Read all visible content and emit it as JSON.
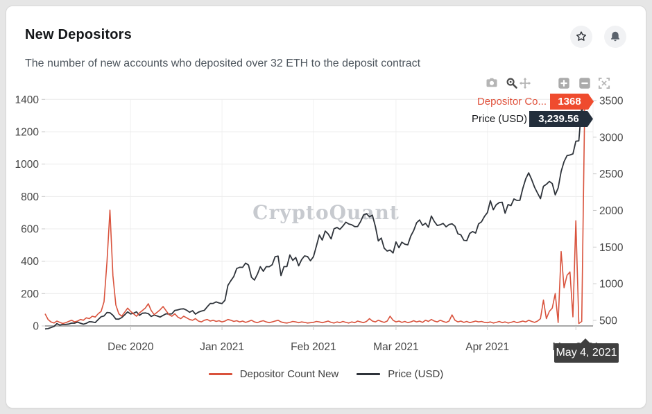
{
  "header": {
    "title": "New Depositors",
    "subtitle": "The number of new accounts who deposited over 32 ETH to the deposit contract"
  },
  "hover": {
    "series1_label": "Depositor Co...",
    "series1_value": "1368",
    "series1_color": "#e0503a",
    "series1_badge_color": "#ef4b2e",
    "series2_label": "Price (USD)",
    "series2_value": "3,239.56",
    "series2_badge_color": "#232e3b",
    "date_label": "May 4, 2021",
    "date_badge_color": "#3f3f3f"
  },
  "watermark": "CryptoQuant",
  "legend": {
    "items": [
      {
        "label": "Depositor Count New",
        "color": "#d9523c"
      },
      {
        "label": "Price (USD)",
        "color": "#2e333a"
      }
    ]
  },
  "chart_data": {
    "type": "line",
    "start_date": "2020-11-02",
    "frequency": "daily",
    "x_ticks": [
      "Dec 2020",
      "Jan 2021",
      "Feb 2021",
      "Mar 2021",
      "Apr 2021",
      "May 2021"
    ],
    "left_axis": {
      "ticks": [
        0,
        200,
        400,
        600,
        800,
        1000,
        1200,
        1400
      ],
      "range": [
        0,
        1400
      ]
    },
    "right_axis": {
      "ticks": [
        500,
        1000,
        1500,
        2000,
        2500,
        3000,
        3500
      ],
      "range": [
        424,
        3516
      ]
    },
    "grid": true,
    "legend_position": "bottom",
    "series": [
      {
        "name": "Depositor Count New",
        "axis": "left",
        "color": "#d9523c",
        "last_point": {
          "date": "May 4, 2021",
          "value": 1368
        },
        "values": [
          75,
          40,
          25,
          18,
          30,
          22,
          15,
          20,
          28,
          35,
          25,
          30,
          40,
          35,
          50,
          45,
          60,
          55,
          75,
          90,
          150,
          400,
          715,
          310,
          130,
          75,
          60,
          85,
          110,
          90,
          75,
          60,
          80,
          95,
          110,
          137,
          95,
          70,
          85,
          100,
          120,
          95,
          70,
          60,
          75,
          55,
          45,
          60,
          50,
          40,
          35,
          45,
          30,
          25,
          35,
          40,
          30,
          35,
          28,
          32,
          25,
          30,
          40,
          35,
          28,
          32,
          25,
          30,
          22,
          28,
          35,
          25,
          20,
          28,
          32,
          25,
          20,
          25,
          30,
          35,
          25,
          20,
          18,
          22,
          28,
          25,
          20,
          25,
          22,
          18,
          20,
          22,
          28,
          25,
          20,
          25,
          30,
          22,
          18,
          25,
          20,
          28,
          22,
          18,
          25,
          20,
          30,
          25,
          20,
          28,
          45,
          30,
          25,
          35,
          28,
          22,
          30,
          60,
          35,
          25,
          30,
          22,
          28,
          20,
          25,
          32,
          25,
          30,
          22,
          35,
          28,
          40,
          30,
          25,
          35,
          28,
          22,
          30,
          68,
          35,
          25,
          30,
          22,
          28,
          20,
          25,
          30,
          25,
          28,
          22,
          20,
          25,
          18,
          22,
          28,
          20,
          25,
          18,
          22,
          28,
          20,
          25,
          30,
          25,
          35,
          28,
          22,
          30,
          45,
          160,
          45,
          90,
          110,
          200,
          21,
          460,
          236,
          313,
          334,
          56,
          650,
          15,
          28,
          1368
        ]
      },
      {
        "name": "Price (USD)",
        "axis": "right",
        "color": "#2e333a",
        "last_point": {
          "date": "May 4, 2021",
          "value": 3239.56
        },
        "values": [
          383,
          387,
          402,
          416,
          455,
          435,
          444,
          445,
          450,
          463,
          462,
          476,
          461,
          448,
          460,
          482,
          479,
          470,
          510,
          550,
          560,
          608,
          604,
          570,
          518,
          517,
          538,
          575,
          615,
          587,
          597,
          616,
          569,
          597,
          601,
          592,
          554,
          573,
          560,
          545,
          568,
          590,
          586,
          589,
          636,
          643,
          655,
          658,
          639,
          610,
          632,
          585,
          612,
          627,
          637,
          685,
          730,
          732,
          752,
          737,
          730,
          774,
          978,
          1041,
          1100,
          1208,
          1225,
          1224,
          1281,
          1254,
          1087,
          1050,
          1130,
          1232,
          1171,
          1233,
          1232,
          1259,
          1368,
          1377,
          1110,
          1233,
          1234,
          1392,
          1318,
          1358,
          1245,
          1330,
          1380,
          1370,
          1314,
          1369,
          1512,
          1665,
          1596,
          1719,
          1680,
          1612,
          1750,
          1768,
          1742,
          1788,
          1840,
          1815,
          1805,
          1779,
          1781,
          1849,
          1937,
          1955,
          1914,
          1935,
          1781,
          1583,
          1624,
          1485,
          1446,
          1459,
          1420,
          1570,
          1492,
          1567,
          1540,
          1530,
          1651,
          1726,
          1833,
          1870,
          1796,
          1826,
          1771,
          1924,
          1848,
          1795,
          1805,
          1823,
          1776,
          1808,
          1818,
          1785,
          1681,
          1668,
          1593,
          1587,
          1687,
          1712,
          1691,
          1817,
          1846,
          1918,
          1970,
          2133,
          2009,
          2079,
          2107,
          2112,
          1963,
          2080,
          2066,
          2157,
          2137,
          2138,
          2299,
          2432,
          2514,
          2422,
          2317,
          2236,
          2161,
          2330,
          2357,
          2396,
          2367,
          2213,
          2307,
          2532,
          2666,
          2748,
          2757,
          2772,
          2944,
          2950,
          3431,
          3239.56
        ]
      }
    ]
  }
}
